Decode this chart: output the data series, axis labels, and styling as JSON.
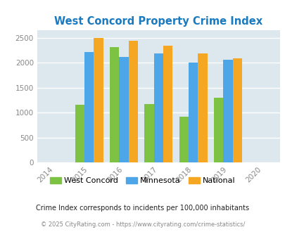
{
  "title": "West Concord Property Crime Index",
  "title_color": "#1a7abf",
  "years": [
    2015,
    2016,
    2017,
    2018,
    2019
  ],
  "west_concord": [
    1150,
    2310,
    1165,
    920,
    1295
  ],
  "minnesota": [
    2210,
    2120,
    2180,
    1995,
    2060
  ],
  "national": [
    2490,
    2440,
    2340,
    2190,
    2090
  ],
  "bar_colors": {
    "west_concord": "#7dc243",
    "minnesota": "#4da6e8",
    "national": "#f5a623"
  },
  "xlim": [
    2013.5,
    2020.5
  ],
  "ylim": [
    0,
    2650
  ],
  "yticks": [
    0,
    500,
    1000,
    1500,
    2000,
    2500
  ],
  "xticks": [
    2014,
    2015,
    2016,
    2017,
    2018,
    2019,
    2020
  ],
  "bg_color": "#dce8ee",
  "grid_color": "#ffffff",
  "legend_labels": [
    "West Concord",
    "Minnesota",
    "National"
  ],
  "footnote1": "Crime Index corresponds to incidents per 100,000 inhabitants",
  "footnote2": "© 2025 CityRating.com - https://www.cityrating.com/crime-statistics/",
  "bar_width": 0.27
}
